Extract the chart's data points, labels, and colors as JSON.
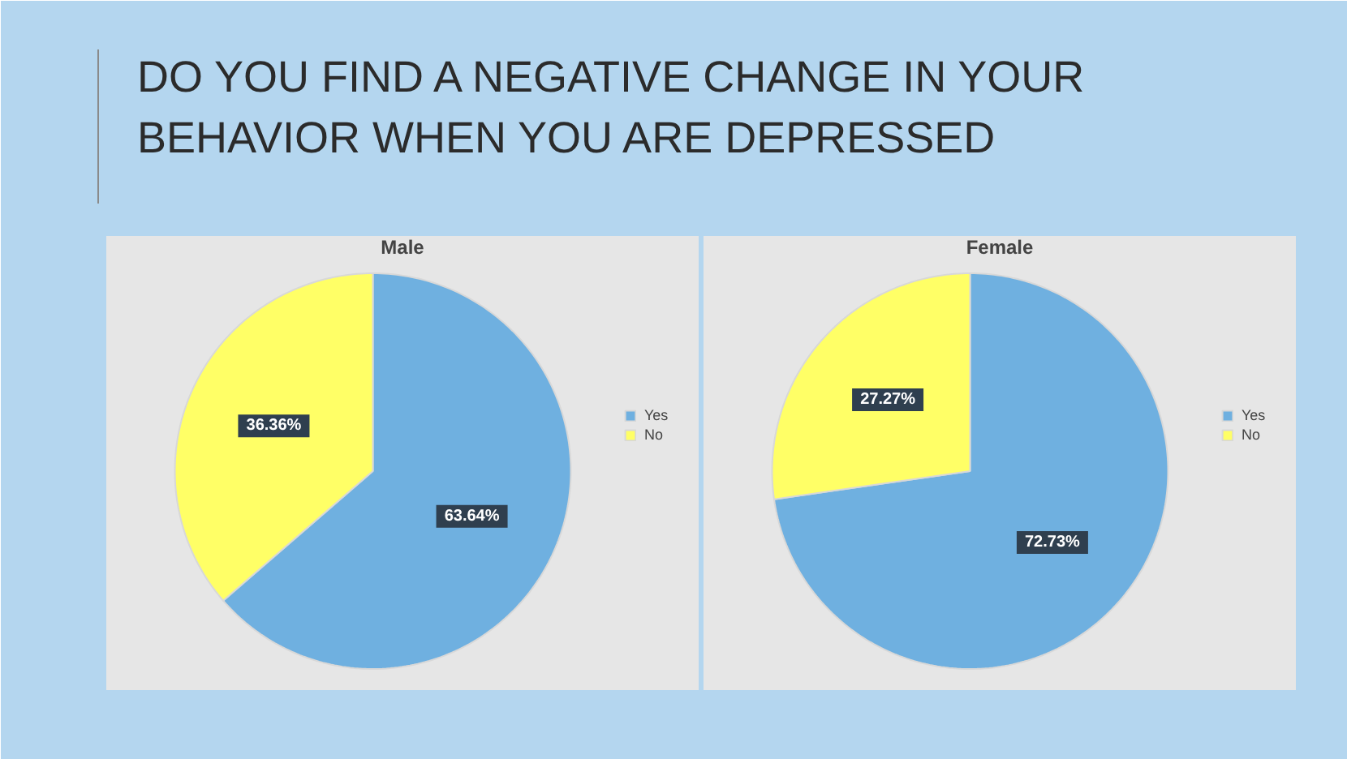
{
  "chart_data": [
    {
      "type": "pie",
      "title": "Male",
      "annotations": [
        "DO YOU FIND A NEGATIVE CHANGE IN YOUR BEHAVIOR WHEN YOU ARE DEPRESSED"
      ],
      "categories": [
        "Yes",
        "No"
      ],
      "values": [
        63.64,
        36.36
      ],
      "value_labels": [
        "63.64%",
        "36.36%"
      ],
      "colors": [
        "#6fb0e0",
        "#ffff66"
      ],
      "legend": "right"
    },
    {
      "type": "pie",
      "title": "Female",
      "categories": [
        "Yes",
        "No"
      ],
      "values": [
        72.73,
        27.27
      ],
      "value_labels": [
        "72.73%",
        "27.27%"
      ],
      "colors": [
        "#6fb0e0",
        "#ffff66"
      ],
      "legend": "right"
    }
  ]
}
